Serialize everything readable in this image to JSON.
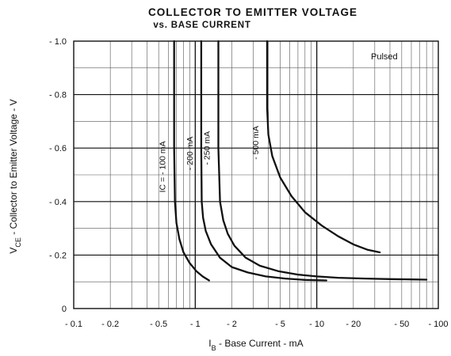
{
  "chart_data": {
    "type": "line",
    "title": "COLLECTOR TO EMITTER VOLTAGE",
    "subtitle": "vs. BASE CURRENT",
    "xlabel": "I_B - Base Current - mA",
    "ylabel": "V_CE - Collector to Emitter Voltage - V",
    "x_scale": "log",
    "xlim": [
      0.1,
      100
    ],
    "ylim": [
      0,
      1.0
    ],
    "x_ticks": [
      {
        "value": 0.1,
        "label": "- 0.1"
      },
      {
        "value": 0.2,
        "label": "- 0.2"
      },
      {
        "value": 0.5,
        "label": "- 0.5"
      },
      {
        "value": 1,
        "label": "- 1"
      },
      {
        "value": 2,
        "label": "- 2"
      },
      {
        "value": 5,
        "label": "- 5"
      },
      {
        "value": 10,
        "label": "- 10"
      },
      {
        "value": 20,
        "label": "- 20"
      },
      {
        "value": 50,
        "label": "- 50"
      },
      {
        "value": 100,
        "label": "- 100"
      }
    ],
    "y_ticks": [
      {
        "value": 0,
        "label": "0"
      },
      {
        "value": 0.2,
        "label": "- 0.2"
      },
      {
        "value": 0.4,
        "label": "- 0.4"
      },
      {
        "value": 0.6,
        "label": "- 0.6"
      },
      {
        "value": 0.8,
        "label": "- 0.8"
      },
      {
        "value": 1.0,
        "label": "- 1.0"
      }
    ],
    "grid": true,
    "legend_note": "Pulsed",
    "series": [
      {
        "name": "IC = - 100 mA",
        "x": [
          0.67,
          0.67,
          0.68,
          0.7,
          0.74,
          0.8,
          0.9,
          1.02,
          1.15,
          1.3
        ],
        "y": [
          1.0,
          0.6,
          0.4,
          0.32,
          0.26,
          0.21,
          0.17,
          0.14,
          0.12,
          0.105
        ]
      },
      {
        "name": "- 200 mA",
        "x": [
          1.12,
          1.12,
          1.13,
          1.16,
          1.22,
          1.35,
          1.6,
          2.0,
          2.7,
          3.8,
          5.5,
          8.0,
          12.0
        ],
        "y": [
          1.0,
          0.6,
          0.4,
          0.34,
          0.29,
          0.24,
          0.19,
          0.155,
          0.135,
          0.12,
          0.112,
          0.107,
          0.105
        ]
      },
      {
        "name": "- 250 mA",
        "x": [
          1.55,
          1.55,
          1.6,
          1.7,
          1.85,
          2.1,
          2.6,
          3.4,
          4.8,
          7.0,
          10.0,
          15.0,
          25.0,
          40.0,
          60.0,
          80.0
        ],
        "y": [
          1.0,
          0.6,
          0.4,
          0.33,
          0.28,
          0.235,
          0.19,
          0.16,
          0.14,
          0.127,
          0.12,
          0.115,
          0.112,
          0.11,
          0.109,
          0.108
        ]
      },
      {
        "name": "- 500 mA",
        "x": [
          3.9,
          3.9,
          4.0,
          4.3,
          5.0,
          6.2,
          8.0,
          11.0,
          15.0,
          20.0,
          26.0,
          33.0
        ],
        "y": [
          1.0,
          0.75,
          0.65,
          0.57,
          0.49,
          0.42,
          0.36,
          0.31,
          0.27,
          0.24,
          0.22,
          0.21
        ]
      }
    ]
  }
}
